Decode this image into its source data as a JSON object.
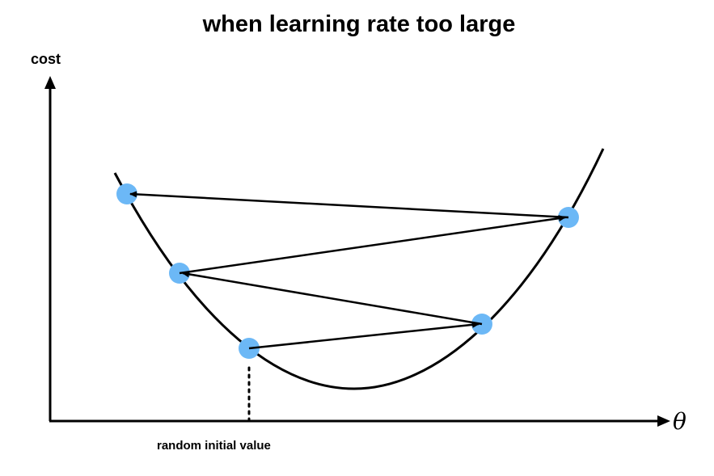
{
  "title": "when learning rate too large",
  "y_axis_label": "cost",
  "x_axis_label": "θ",
  "annotation": "random initial value",
  "colors": {
    "point": "#6cb8f6",
    "line": "#000000"
  },
  "steps": [
    {
      "from": "point-1",
      "to": "point-2"
    },
    {
      "from": "point-2",
      "to": "point-3"
    },
    {
      "from": "point-3",
      "to": "point-4"
    },
    {
      "from": "point-4",
      "to": "point-5"
    }
  ]
}
